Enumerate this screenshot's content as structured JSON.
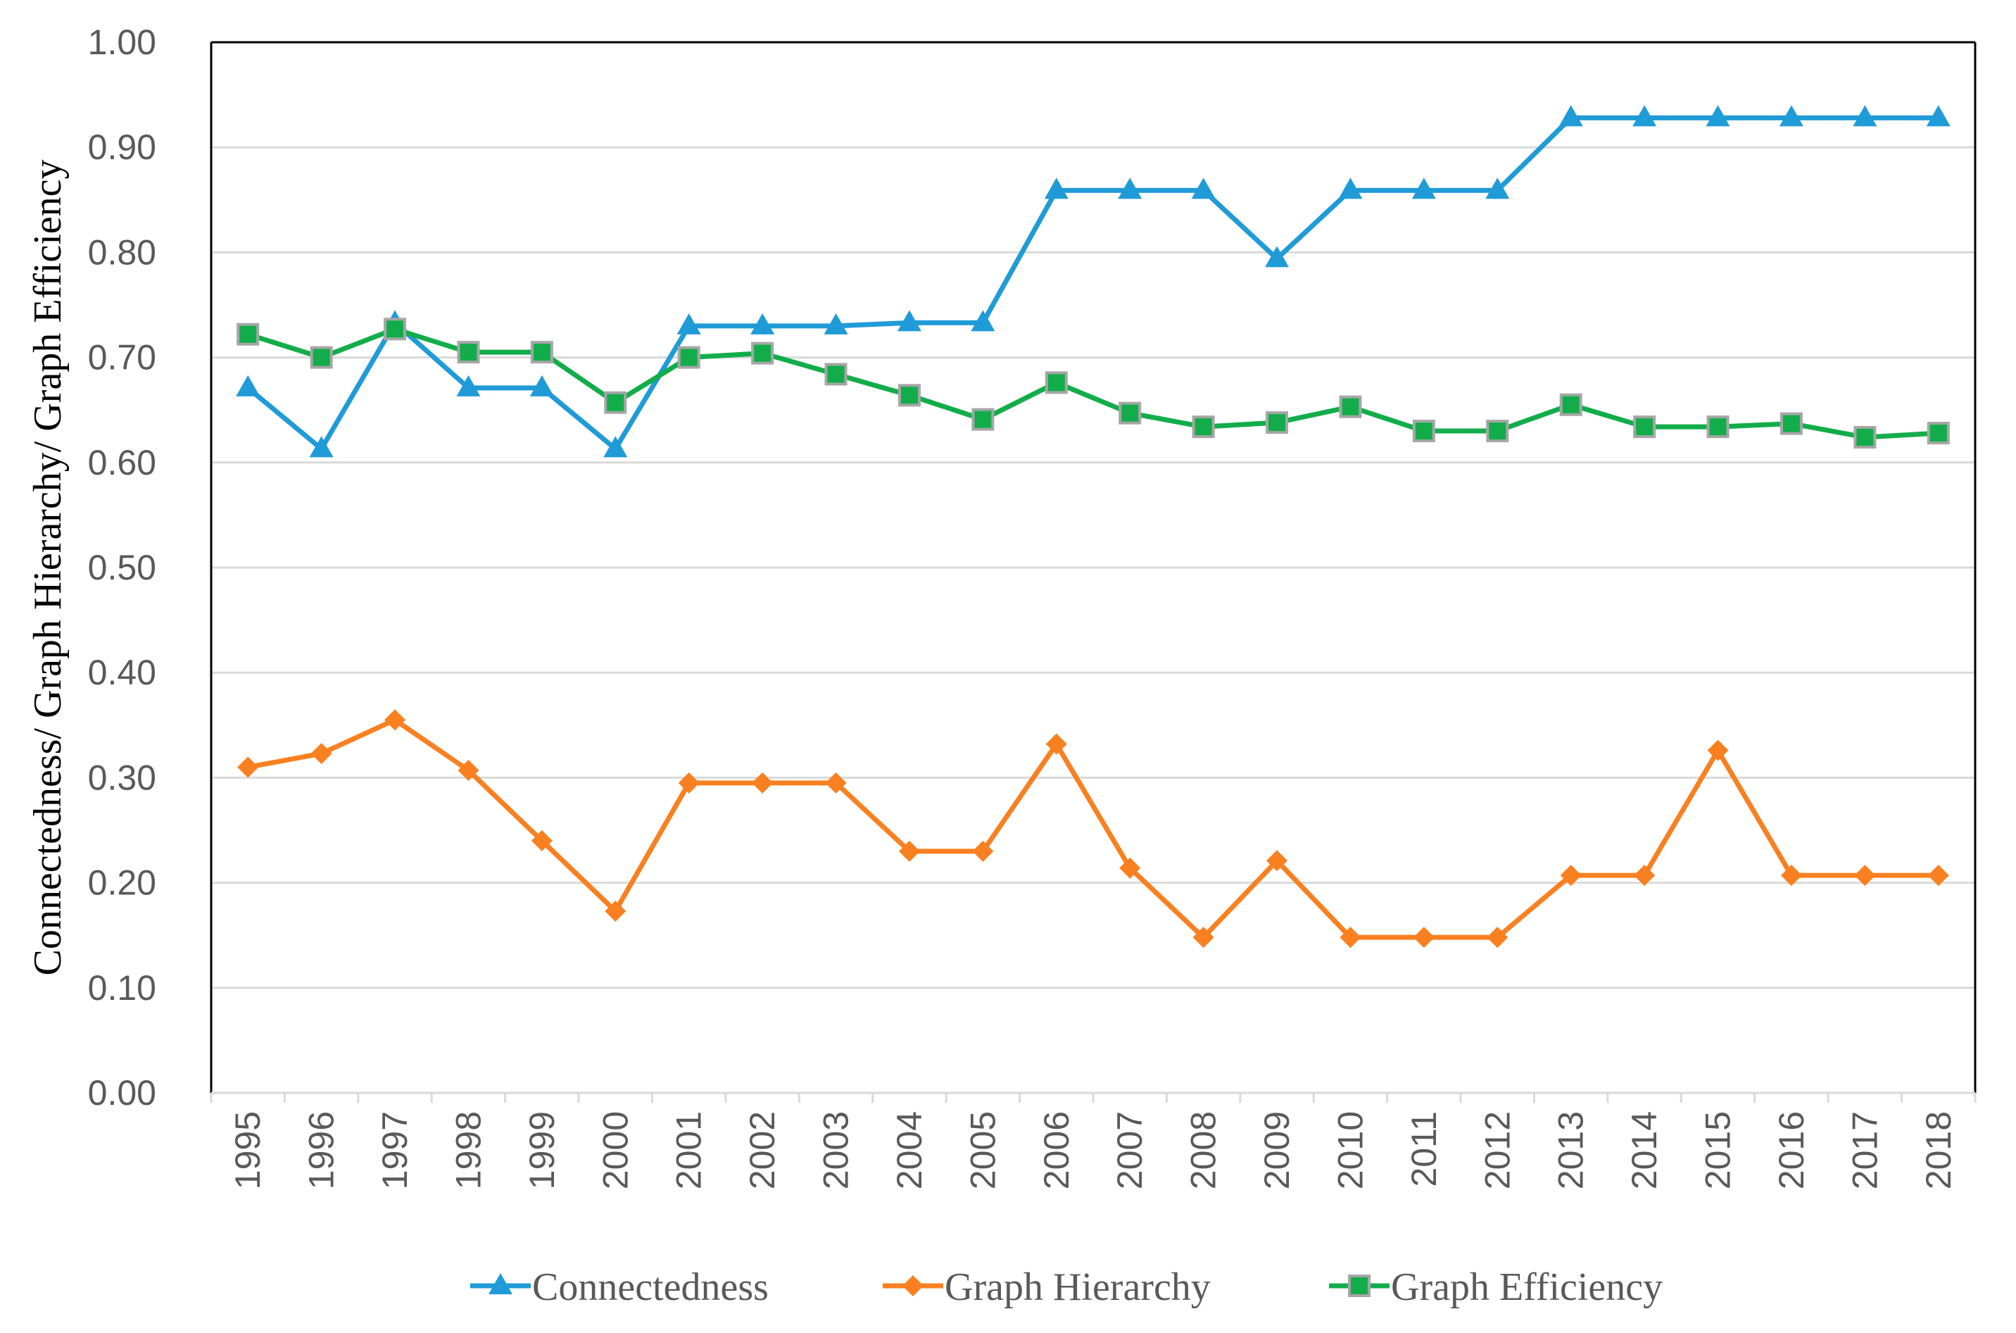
{
  "chart_data": {
    "type": "line",
    "title": "",
    "xlabel": "",
    "ylabel": "Connectedness/ Graph Hierarchy/ Graph Efficiency",
    "ylim": [
      0,
      1
    ],
    "y_ticks": [
      "0.00",
      "0.10",
      "0.20",
      "0.30",
      "0.40",
      "0.50",
      "0.60",
      "0.70",
      "0.80",
      "0.90",
      "1.00"
    ],
    "grid": true,
    "legend_position": "bottom",
    "categories": [
      "1995",
      "1996",
      "1997",
      "1998",
      "1999",
      "2000",
      "2001",
      "2002",
      "2003",
      "2004",
      "2005",
      "2006",
      "2007",
      "2008",
      "2009",
      "2010",
      "2011",
      "2012",
      "2013",
      "2014",
      "2015",
      "2016",
      "2017",
      "2018"
    ],
    "series": [
      {
        "name": "Connectedness",
        "color": "#1f9bd7",
        "marker": "triangle",
        "values": [
          0.671,
          0.613,
          0.733,
          0.671,
          0.671,
          0.613,
          0.73,
          0.73,
          0.73,
          0.733,
          0.733,
          0.859,
          0.859,
          0.859,
          0.794,
          0.859,
          0.859,
          0.859,
          0.928,
          0.928,
          0.928,
          0.928,
          0.928,
          0.928
        ]
      },
      {
        "name": "Graph Hierarchy",
        "color": "#f98020",
        "marker": "diamond",
        "values": [
          0.31,
          0.323,
          0.355,
          0.307,
          0.24,
          0.173,
          0.295,
          0.295,
          0.295,
          0.23,
          0.23,
          0.332,
          0.214,
          0.148,
          0.221,
          0.148,
          0.148,
          0.148,
          0.207,
          0.207,
          0.326,
          0.207,
          0.207,
          0.207
        ]
      },
      {
        "name": "Graph Efficiency",
        "color": "#12ad4a",
        "marker": "square",
        "values": [
          0.722,
          0.7,
          0.727,
          0.705,
          0.705,
          0.657,
          0.7,
          0.704,
          0.684,
          0.664,
          0.641,
          0.676,
          0.647,
          0.634,
          0.638,
          0.653,
          0.63,
          0.63,
          0.655,
          0.634,
          0.634,
          0.637,
          0.624,
          0.628
        ]
      }
    ]
  }
}
